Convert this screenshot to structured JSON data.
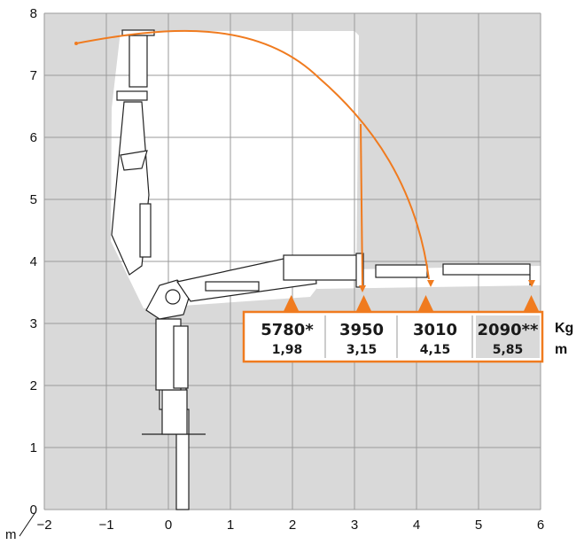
{
  "axes": {
    "x_ticks": [
      "-2",
      "-1",
      "0",
      "1",
      "2",
      "3",
      "4",
      "5",
      "6"
    ],
    "y_ticks": [
      "0",
      "1",
      "2",
      "3",
      "4",
      "5",
      "6",
      "7",
      "8"
    ],
    "x_unit": "m"
  },
  "load_table": {
    "kg_unit": "Kg",
    "m_unit": "m",
    "entries": [
      {
        "kg": "5780*",
        "m": "1,98",
        "highlight": false
      },
      {
        "kg": "3950",
        "m": "3,15",
        "highlight": false
      },
      {
        "kg": "3010",
        "m": "4,15",
        "highlight": false
      },
      {
        "kg": "2090**",
        "m": "5,85",
        "highlight": true
      }
    ]
  },
  "colors": {
    "accent": "#F07B1F",
    "grid": "#9a9a9a",
    "background": "#d9d9d9",
    "work_area": "#ffffff",
    "highlight_cell": "#d9d9d9"
  }
}
